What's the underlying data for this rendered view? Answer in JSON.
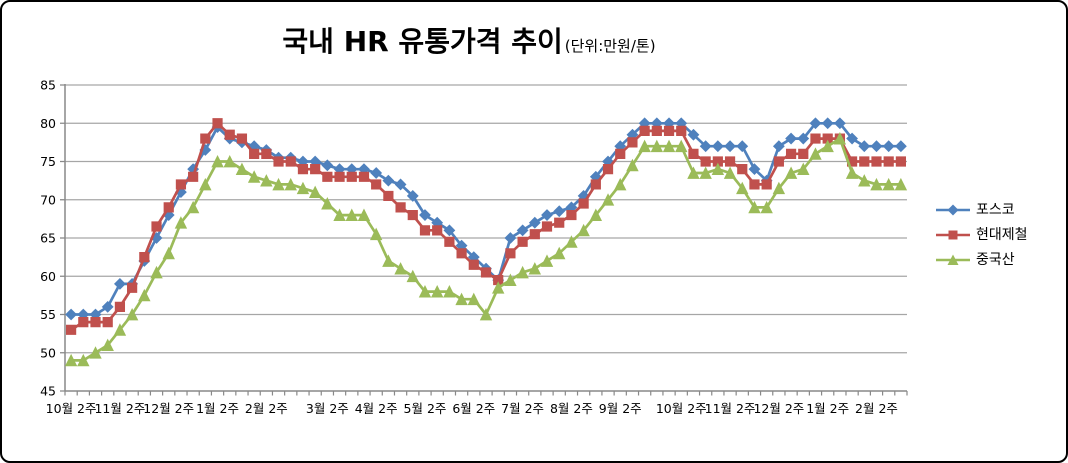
{
  "title": "국내 HR 유통가격 추이",
  "title_unit": "(단위:만원/톤)",
  "legend": [
    {
      "label": "포스코",
      "color": "#4f81bd",
      "marker": "diamond"
    },
    {
      "label": "현대제철",
      "color": "#c0504d",
      "marker": "square"
    },
    {
      "label": "중국산",
      "color": "#9bbb59",
      "marker": "triangle"
    }
  ],
  "colors": {
    "gridline": "#a6a6a6",
    "axis": "#898989",
    "background": "#ffffff",
    "border": "#000000"
  },
  "chart_data": {
    "type": "line",
    "title": "국내 HR 유통가격 추이",
    "unit_label": "(단위:만원/톤)",
    "ylim": [
      45,
      85
    ],
    "y_ticks": [
      45,
      50,
      55,
      60,
      65,
      70,
      75,
      80,
      85
    ],
    "grid": true,
    "legend_position": "right",
    "n_points": 69,
    "x_tick_labels": [
      "10월 2주",
      "11월 2주",
      "12월 2주",
      "1월 2주",
      "2월 2주",
      "3월 2주",
      "4월 2주",
      "5월 2주",
      "6월 2주",
      "7월 2주",
      "8월 2주",
      "9월 2주",
      "10월 2주",
      "11월 2주",
      "12월 2주",
      "1월 2주",
      "2월 2주"
    ],
    "x_tick_label_indices": [
      0,
      4,
      8,
      12,
      16,
      21,
      25,
      29,
      33,
      37,
      41,
      45,
      50,
      54,
      58,
      62,
      66
    ],
    "series": [
      {
        "name": "포스코",
        "key": "posco",
        "color": "#4f81bd",
        "marker": "diamond",
        "values": [
          55,
          55,
          55,
          56,
          59,
          59,
          62,
          65,
          68,
          71,
          74,
          76.5,
          79.5,
          78,
          77.5,
          77,
          76.5,
          75.5,
          75.5,
          75,
          75,
          74.5,
          74,
          74,
          74,
          73.5,
          72.5,
          72,
          70.5,
          68,
          67,
          66,
          64,
          62.5,
          61,
          59.5,
          65,
          66,
          67,
          68,
          68.5,
          69,
          70.5,
          73,
          75,
          77,
          78.5,
          80,
          80,
          80,
          80,
          78.5,
          77,
          77,
          77,
          77,
          74,
          72.5,
          77,
          78,
          78,
          80,
          80,
          80,
          78,
          77,
          77,
          77,
          77
        ]
      },
      {
        "name": "현대제철",
        "key": "hyundai-steel",
        "color": "#c0504d",
        "marker": "square",
        "values": [
          53,
          54,
          54,
          54,
          56,
          58.5,
          62.5,
          66.5,
          69,
          72,
          73,
          78,
          80,
          78.5,
          78,
          76,
          76,
          75,
          75,
          74,
          74,
          73,
          73,
          73,
          73,
          72,
          70.5,
          69,
          68,
          66,
          66,
          64.5,
          63,
          61.5,
          60.5,
          59.5,
          63,
          64.5,
          65.5,
          66.5,
          67,
          68,
          69.5,
          72,
          74,
          76,
          77.5,
          79,
          79,
          79,
          79,
          76,
          75,
          75,
          75,
          74,
          72,
          72,
          75,
          76,
          76,
          78,
          78,
          78,
          75,
          75,
          75,
          75,
          75
        ]
      },
      {
        "name": "중국산",
        "key": "china-imported",
        "color": "#9bbb59",
        "marker": "triangle",
        "values": [
          49,
          49,
          50,
          51,
          53,
          55,
          57.5,
          60.5,
          63,
          67,
          69,
          72,
          75,
          75,
          74,
          73,
          72.5,
          72,
          72,
          71.5,
          71,
          69.5,
          68,
          68,
          68,
          65.5,
          62,
          61,
          60,
          58,
          58,
          58,
          57,
          57,
          55,
          58.5,
          59.5,
          60.5,
          61,
          62,
          63,
          64.5,
          66,
          68,
          70,
          72,
          74.5,
          77,
          77,
          77,
          77,
          73.5,
          73.5,
          74,
          73.5,
          71.5,
          69,
          69,
          71.5,
          73.5,
          74,
          76,
          77,
          78,
          73.5,
          72.5,
          72,
          72,
          72
        ]
      }
    ]
  }
}
